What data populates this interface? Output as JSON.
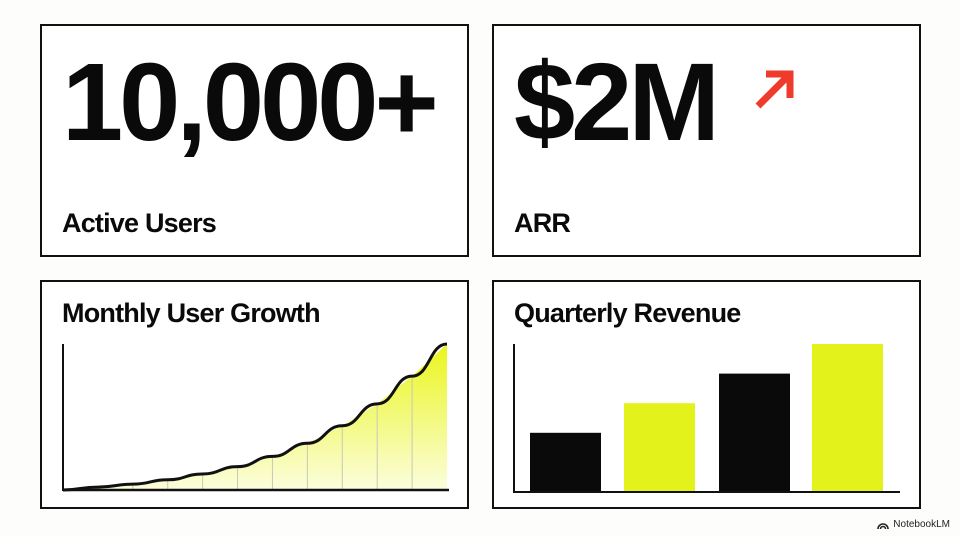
{
  "kpis": [
    {
      "value": "10,000+",
      "label": "Active Users"
    },
    {
      "value": "$2M",
      "label": "ARR",
      "trend_icon": "arrow-up-right-icon",
      "trend_color": "#ef3b2c"
    }
  ],
  "chart_data": [
    {
      "type": "area",
      "title": "Monthly User Growth",
      "xlabel": "",
      "ylabel": "",
      "x": [
        0,
        1,
        2,
        3,
        4,
        5,
        6,
        7,
        8,
        9,
        10,
        11
      ],
      "values": [
        0,
        2,
        4,
        7,
        11,
        16,
        23,
        32,
        44,
        59,
        78,
        100
      ],
      "ylim": [
        0,
        100
      ],
      "grid": "vertical",
      "line_color": "#111111",
      "fill_color": "#eaf51c"
    },
    {
      "type": "bar",
      "title": "Quarterly Revenue",
      "xlabel": "",
      "ylabel": "",
      "values": [
        40,
        60,
        80,
        100
      ],
      "ylim": [
        0,
        100
      ],
      "colors": [
        "#0a0a0a",
        "#e3f21a",
        "#0a0a0a",
        "#e3f21a"
      ]
    }
  ],
  "brand": {
    "label": "NotebookLM",
    "icon": "notebooklm-logo-icon"
  }
}
